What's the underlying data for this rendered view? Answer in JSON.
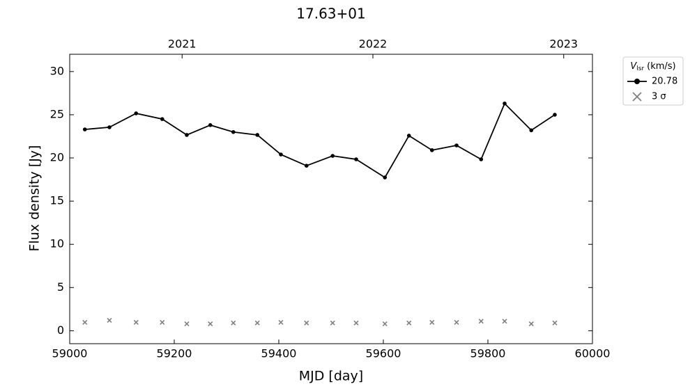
{
  "chart_data": {
    "type": "line",
    "title": "17.63+01",
    "xlabel": "MJD [day]",
    "ylabel": "Flux density [Jy]",
    "legend_title": {
      "symbol": "V",
      "subscript": "lsr",
      "unit": "(km/s)"
    },
    "x": [
      59029,
      59076,
      59127,
      59177,
      59224,
      59269,
      59313,
      59359,
      59404,
      59453,
      59503,
      59548,
      59603,
      59649,
      59693,
      59740,
      59787,
      59832,
      59883,
      59928
    ],
    "series": [
      {
        "name": "20.78",
        "color": "#000000",
        "marker": "dot",
        "line": true,
        "values": [
          23.3,
          23.55,
          25.16,
          24.5,
          22.66,
          23.8,
          23.0,
          22.66,
          20.4,
          19.1,
          20.24,
          19.84,
          17.74,
          22.58,
          20.9,
          21.45,
          19.84,
          26.3,
          23.2,
          25.0
        ]
      },
      {
        "name": "3 σ",
        "color": "#808080",
        "marker": "x",
        "line": false,
        "values": [
          0.97,
          1.2,
          0.97,
          0.97,
          0.8,
          0.8,
          0.9,
          0.9,
          0.97,
          0.9,
          0.9,
          0.9,
          0.8,
          0.9,
          0.97,
          0.97,
          1.1,
          1.1,
          0.8,
          0.9
        ]
      }
    ],
    "xlim": [
      59000,
      60000
    ],
    "xticks": [
      59000,
      59200,
      59400,
      59600,
      59800,
      60000
    ],
    "x2ticks": [
      {
        "value": 59215,
        "label": "2021"
      },
      {
        "value": 59580,
        "label": "2022"
      },
      {
        "value": 59945,
        "label": "2023"
      }
    ],
    "ylim": [
      -1.5,
      32
    ],
    "yticks": [
      0,
      5,
      10,
      15,
      20,
      25,
      30
    ],
    "legend": "outside-upper-right"
  }
}
